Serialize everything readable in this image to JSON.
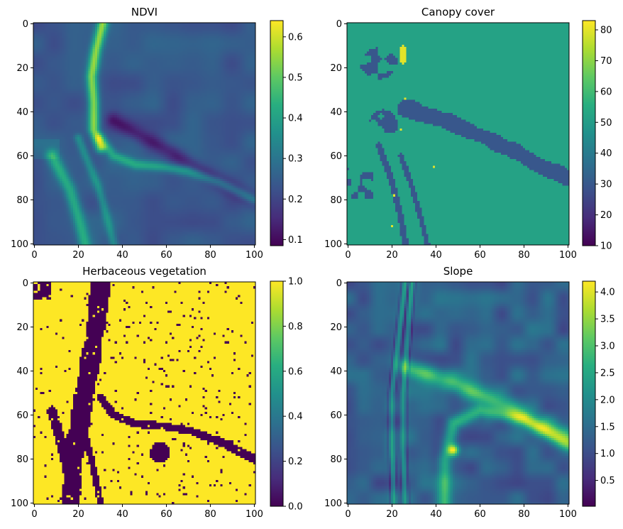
{
  "chart_data": [
    {
      "type": "heatmap",
      "title": "NDVI",
      "colormap": "viridis",
      "xlim": [
        0,
        100
      ],
      "ylim": [
        100,
        0
      ],
      "x_ticks": [
        "0",
        "20",
        "40",
        "60",
        "80",
        "100"
      ],
      "y_ticks": [
        "0",
        "20",
        "40",
        "60",
        "80",
        "100"
      ],
      "colorbar": {
        "range": [
          0.085,
          0.64
        ],
        "ticks": [
          "0.1",
          "0.2",
          "0.3",
          "0.4",
          "0.5",
          "0.6"
        ],
        "tick_values": [
          0.1,
          0.2,
          0.3,
          0.4,
          0.5,
          0.6
        ]
      }
    },
    {
      "type": "heatmap",
      "title": "Canopy cover",
      "colormap": "viridis",
      "xlim": [
        0,
        100
      ],
      "ylim": [
        100,
        0
      ],
      "x_ticks": [
        "0",
        "20",
        "40",
        "60",
        "80",
        "100"
      ],
      "y_ticks": [
        "0",
        "20",
        "40",
        "60",
        "80",
        "100"
      ],
      "colorbar": {
        "range": [
          10,
          83
        ],
        "ticks": [
          "10",
          "20",
          "30",
          "40",
          "50",
          "60",
          "70",
          "80"
        ],
        "tick_values": [
          10,
          20,
          30,
          40,
          50,
          60,
          70,
          80
        ]
      }
    },
    {
      "type": "heatmap",
      "title": "Herbaceous vegetation",
      "colormap": "viridis",
      "xlim": [
        0,
        100
      ],
      "ylim": [
        100,
        0
      ],
      "x_ticks": [
        "0",
        "20",
        "40",
        "60",
        "80",
        "100"
      ],
      "y_ticks": [
        "0",
        "20",
        "40",
        "60",
        "80",
        "100"
      ],
      "colorbar": {
        "range": [
          0.0,
          1.0
        ],
        "ticks": [
          "0.0",
          "0.2",
          "0.4",
          "0.6",
          "0.8",
          "1.0"
        ],
        "tick_values": [
          0.0,
          0.2,
          0.4,
          0.6,
          0.8,
          1.0
        ]
      }
    },
    {
      "type": "heatmap",
      "title": "Slope",
      "colormap": "viridis",
      "xlim": [
        0,
        100
      ],
      "ylim": [
        100,
        0
      ],
      "x_ticks": [
        "0",
        "20",
        "40",
        "60",
        "80",
        "100"
      ],
      "y_ticks": [
        "0",
        "20",
        "40",
        "60",
        "80",
        "100"
      ],
      "colorbar": {
        "range": [
          0.02,
          4.2
        ],
        "ticks": [
          "0.5",
          "1.0",
          "1.5",
          "2.0",
          "2.5",
          "3.0",
          "3.5",
          "4.0"
        ],
        "tick_values": [
          0.5,
          1.0,
          1.5,
          2.0,
          2.5,
          3.0,
          3.5,
          4.0
        ]
      }
    }
  ]
}
